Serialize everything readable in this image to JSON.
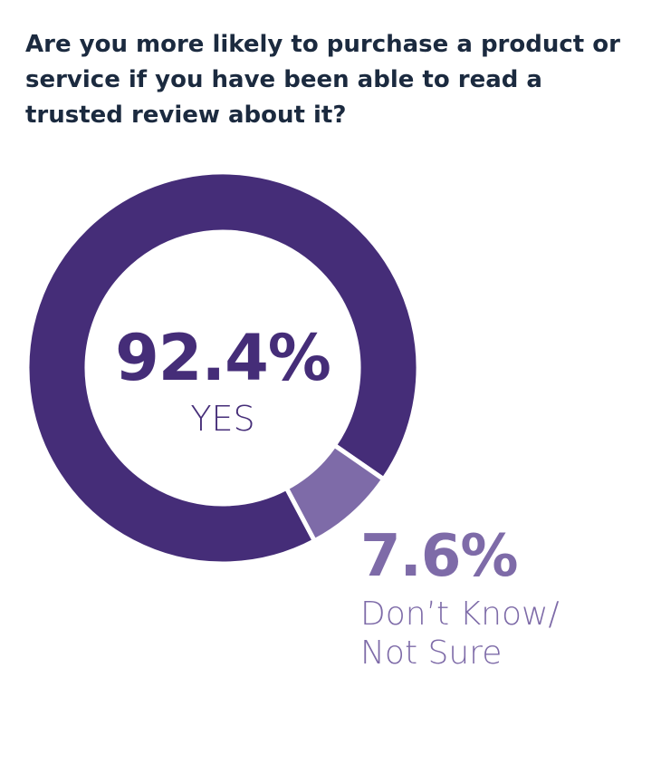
{
  "chart_data": {
    "type": "pie",
    "donut": true,
    "title": "Are you more likely to purchase a product or service if you have been able to read a trusted review about it?",
    "categories": [
      "YES",
      "Don’t Know/ Not Sure"
    ],
    "values": [
      92.4,
      7.6
    ],
    "value_labels": [
      "92.4%",
      "7.6%"
    ],
    "colors": [
      "#452d78",
      "#7e6ba8"
    ]
  }
}
